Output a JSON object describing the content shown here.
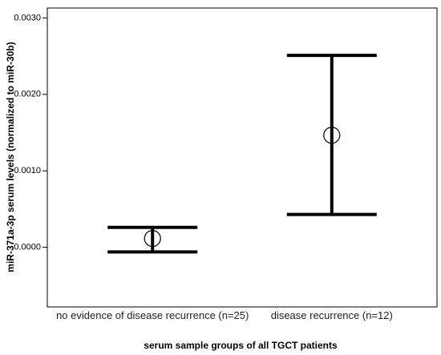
{
  "chart_data": {
    "type": "errorbar",
    "x_label": "serum sample groups of all TGCT patients",
    "y_label": "miR-371a-3p serum levels (normalized to miR-30b)",
    "categories": [
      "no evidence of disease recurrence (n=25)",
      "disease recurrence (n=12)"
    ],
    "series": [
      {
        "name": "mean",
        "color": "#000000",
        "values": [
          0.000115,
          0.001466
        ],
        "lower": [
          -6e-05,
          0.00043
        ],
        "upper": [
          0.00026,
          0.00251
        ]
      }
    ],
    "ylim": [
      -0.00078,
      0.00313
    ],
    "yticks": [
      {
        "value": 0,
        "label": "0.0000"
      },
      {
        "value": 0.001,
        "label": "0.0010"
      },
      {
        "value": 0.002,
        "label": "0.0020"
      },
      {
        "value": 0.003,
        "label": "0.0030"
      }
    ],
    "grid": false
  }
}
